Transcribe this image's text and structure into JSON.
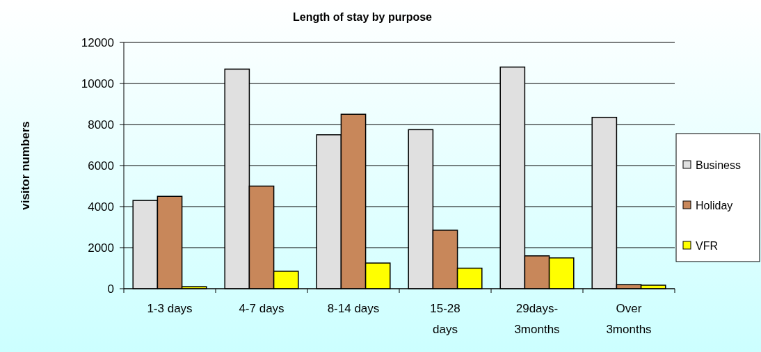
{
  "chart_data": {
    "type": "bar",
    "title": "Length of stay by purpose",
    "ylabel": "visitor numbers",
    "categories": [
      "1-3 days",
      "4-7 days",
      "8-14 days",
      "15-28 days",
      "29days-3months",
      "Over 3months"
    ],
    "series": [
      {
        "name": "Business",
        "color": "#e0e0e0",
        "values": [
          4300,
          10700,
          7500,
          7750,
          10800,
          8350
        ]
      },
      {
        "name": "Holiday",
        "color": "#c8875a",
        "values": [
          4500,
          5000,
          8500,
          2850,
          1600,
          200
        ]
      },
      {
        "name": "VFR",
        "color": "#ffff00",
        "values": [
          100,
          850,
          1250,
          1000,
          1500,
          170
        ]
      }
    ],
    "ylim": [
      0,
      12000
    ],
    "yticks": [
      0,
      2000,
      4000,
      6000,
      8000,
      10000,
      12000
    ],
    "grid": "y",
    "legend": "right"
  }
}
